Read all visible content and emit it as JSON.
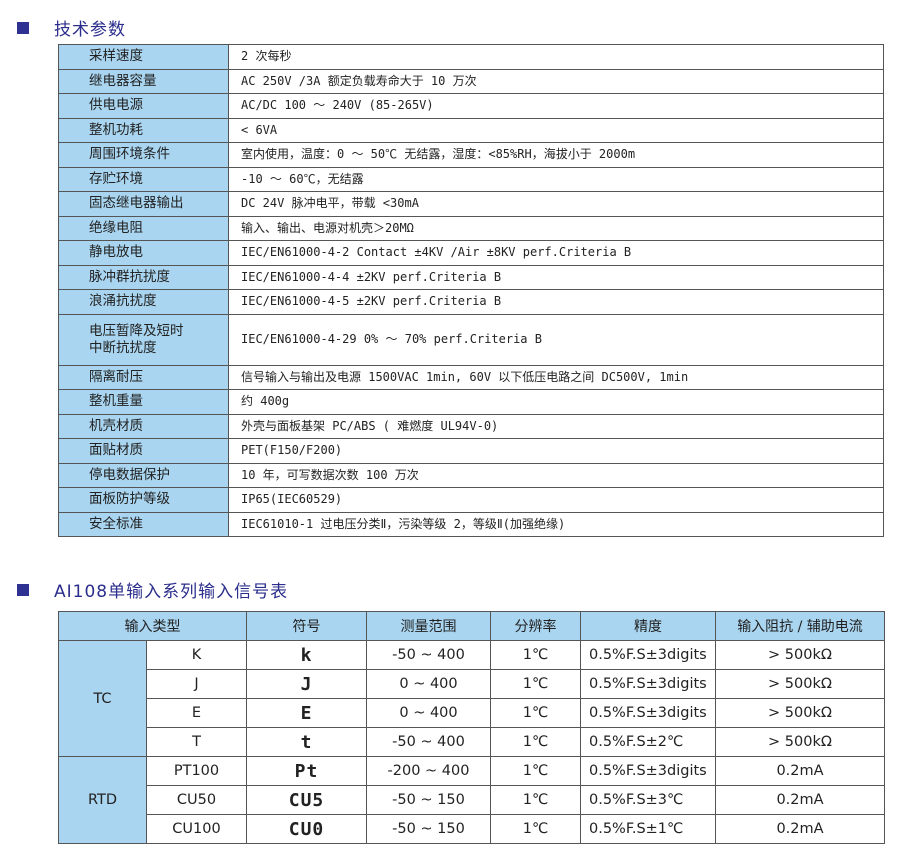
{
  "section1": {
    "title": "技术参数"
  },
  "specs": [
    {
      "label": "采样速度",
      "value": "2 次每秒"
    },
    {
      "label": "继电器容量",
      "value": "AC 250V /3A 额定负载寿命大于 10 万次"
    },
    {
      "label": "供电电源",
      "value": "AC/DC 100 ～ 240V (85-265V)"
    },
    {
      "label": "整机功耗",
      "value": "< 6VA"
    },
    {
      "label": "周围环境条件",
      "value": "室内使用，温度：0 ～ 50℃ 无结露，湿度：<85%RH，海拔小于 2000m"
    },
    {
      "label": "存贮环境",
      "value": "-10 ～ 60℃，无结露"
    },
    {
      "label": "固态继电器输出",
      "value": "DC 24V 脉冲电平，带载 <30mA"
    },
    {
      "label": "绝缘电阻",
      "value": "输入、输出、电源对机壳＞20MΩ"
    },
    {
      "label": "静电放电",
      "value": "IEC/EN61000-4-2   Contact ±4KV /Air ±8KV perf.Criteria B"
    },
    {
      "label": "脉冲群抗扰度",
      "value": "IEC/EN61000-4-4   ±2KV  perf.Criteria B"
    },
    {
      "label": "浪涌抗扰度",
      "value": "IEC/EN61000-4-5   ±2KV   perf.Criteria B"
    },
    {
      "label": "电压暂降及短时中断抗扰度",
      "value": "IEC/EN61000-4-29  0% ～ 70%                  perf.Criteria B"
    },
    {
      "label": "隔离耐压",
      "value": "信号输入与输出及电源 1500VAC 1min, 60V 以下低压电路之间 DC500V, 1min"
    },
    {
      "label": "整机重量",
      "value": "约 400g"
    },
    {
      "label": "机壳材质",
      "value": "外壳与面板基架 PC/ABS ( 难燃度 UL94V-0)"
    },
    {
      "label": "面贴材质",
      "value": "PET(F150/F200)"
    },
    {
      "label": "停电数据保护",
      "value": "10 年，可写数据次数 100 万次"
    },
    {
      "label": "面板防护等级",
      "value": "IP65(IEC60529)"
    },
    {
      "label": "安全标准",
      "value": "IEC61010-1  过电压分类Ⅱ，污染等级 2，等级Ⅱ(加强绝缘)"
    }
  ],
  "section2": {
    "title": "AI108单输入系列输入信号表"
  },
  "signal_table": {
    "headers": [
      "输入类型",
      "符号",
      "测量范围",
      "分辨率",
      "精度",
      "输入阻抗 / 辅助电流"
    ],
    "groups": [
      {
        "name": "TC",
        "rows": [
          {
            "type": "K",
            "symbol": "k",
            "range": "-50 ~ 400",
            "resolution": "1℃",
            "precision": "0.5%F.S±3digits",
            "impedance": "> 500kΩ"
          },
          {
            "type": "J",
            "symbol": "J",
            "range": "0 ~ 400",
            "resolution": "1℃",
            "precision": "0.5%F.S±3digits",
            "impedance": "> 500kΩ"
          },
          {
            "type": "E",
            "symbol": "E",
            "range": "0 ~ 400",
            "resolution": "1℃",
            "precision": "0.5%F.S±3digits",
            "impedance": "> 500kΩ"
          },
          {
            "type": "T",
            "symbol": "t",
            "range": "-50 ~ 400",
            "resolution": "1℃",
            "precision": "0.5%F.S±2℃",
            "impedance": "> 500kΩ"
          }
        ]
      },
      {
        "name": "RTD",
        "rows": [
          {
            "type": "PT100",
            "symbol": "Pt",
            "range": "-200 ~ 400",
            "resolution": "1℃",
            "precision": "0.5%F.S±3digits",
            "impedance": "0.2mA"
          },
          {
            "type": "CU50",
            "symbol": "CU5",
            "range": "-50 ~ 150",
            "resolution": "1℃",
            "precision": "0.5%F.S±3℃",
            "impedance": "0.2mA"
          },
          {
            "type": "CU100",
            "symbol": "CU0",
            "range": "-50 ~ 150",
            "resolution": "1℃",
            "precision": "0.5%F.S±1℃",
            "impedance": "0.2mA"
          }
        ]
      }
    ]
  },
  "colors": {
    "accent": "#2e3192",
    "header_bg": "#a9d5f0",
    "title_text": "#2b2e8c"
  }
}
